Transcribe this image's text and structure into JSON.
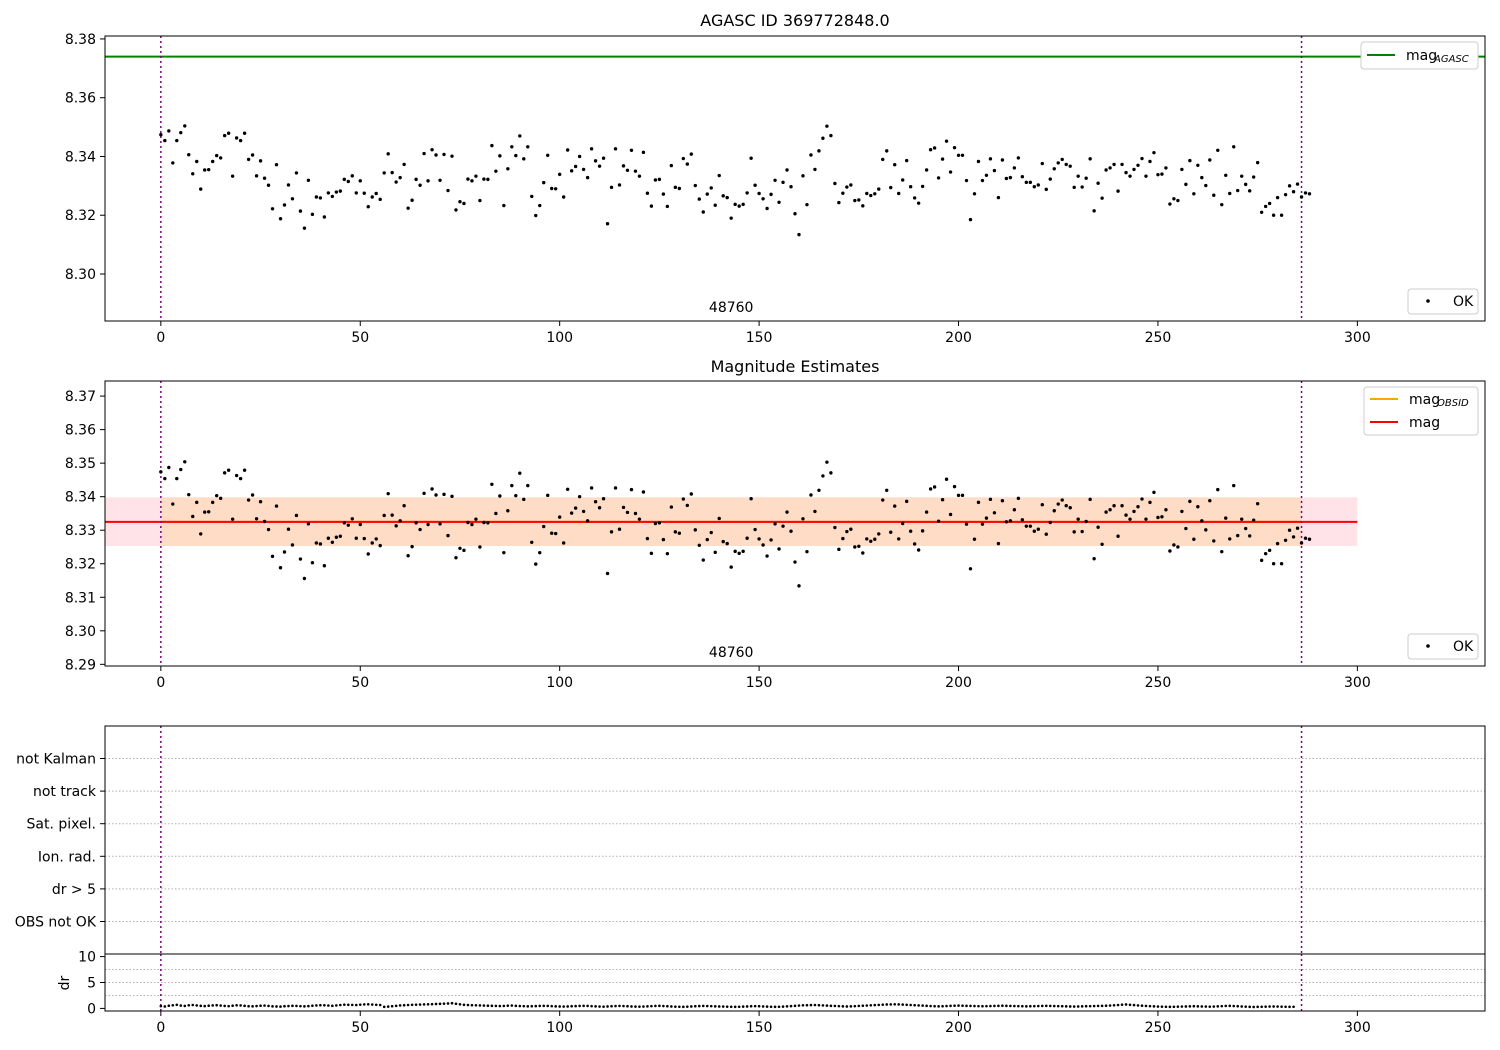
{
  "chart_data": [
    {
      "type": "scatter",
      "title": "AGASC ID 369772848.0",
      "xlim": [
        -14,
        332
      ],
      "ylim": [
        8.284,
        8.381
      ],
      "xticks": [
        0,
        50,
        100,
        150,
        200,
        250,
        300
      ],
      "yticks": [
        8.3,
        8.32,
        8.34,
        8.36,
        8.38
      ],
      "ytick_labels": [
        "8.30",
        "8.32",
        "8.34",
        "8.36",
        "8.38"
      ],
      "vlines": [
        0,
        286
      ],
      "hline": {
        "name": "mag_AGASC",
        "value": 8.374,
        "color": "#008000"
      },
      "obsid_label": {
        "text": "48760",
        "x": 143
      },
      "legends": [
        {
          "position": "top-right",
          "entries": [
            {
              "label": "mag",
              "sub": "AGASC",
              "kind": "line",
              "color": "#008000"
            }
          ]
        },
        {
          "position": "bottom-right",
          "entries": [
            {
              "label": "OK",
              "kind": "dot",
              "color": "#000000"
            }
          ]
        }
      ],
      "series": [
        {
          "name": "OK",
          "values": "shared:points"
        }
      ]
    },
    {
      "type": "scatter",
      "title": "Magnitude Estimates",
      "xlim": [
        -14,
        332
      ],
      "ylim": [
        8.2895,
        8.3745
      ],
      "xticks": [
        0,
        50,
        100,
        150,
        200,
        250,
        300
      ],
      "yticks": [
        8.29,
        8.3,
        8.31,
        8.32,
        8.33,
        8.34,
        8.35,
        8.36,
        8.37
      ],
      "ytick_labels": [
        "8.29",
        "8.30",
        "8.31",
        "8.32",
        "8.33",
        "8.34",
        "8.35",
        "8.36",
        "8.37"
      ],
      "vlines": [
        0,
        286
      ],
      "mag_line": {
        "value": 8.3325,
        "x": [
          -14,
          300
        ],
        "color": "#ff0000"
      },
      "mag_obsid_line": {
        "value": 8.3325,
        "x": [
          0,
          286
        ],
        "color": "#ffa500"
      },
      "band_outer": {
        "low": 8.3253,
        "high": 8.3398,
        "x": [
          -14,
          300
        ],
        "color": "#ffc0cb"
      },
      "band_inner": {
        "low": 8.3253,
        "high": 8.3398,
        "x": [
          0,
          286
        ],
        "color": "#ffdab9"
      },
      "obsid_label": {
        "text": "48760",
        "x": 143
      },
      "legends": [
        {
          "position": "top-right",
          "entries": [
            {
              "label": "mag",
              "sub": "OBSID",
              "kind": "line",
              "color": "#ffa500"
            },
            {
              "label": "mag",
              "sub": "",
              "kind": "line",
              "color": "#ff0000"
            }
          ]
        },
        {
          "position": "bottom-right",
          "entries": [
            {
              "label": "OK",
              "kind": "dot",
              "color": "#000000"
            }
          ]
        }
      ],
      "series": [
        {
          "name": "OK",
          "values": "shared:points"
        }
      ]
    },
    {
      "type": "scatter",
      "xlim": [
        -14,
        332
      ],
      "categories": [
        "OBS not OK",
        "dr > 5",
        "Ion. rad.",
        "Sat. pixel.",
        "not track",
        "not Kalman"
      ],
      "vlines": [
        0,
        286
      ]
    },
    {
      "type": "scatter",
      "ylabel": "dr",
      "xlim": [
        -14,
        332
      ],
      "ylim": [
        -0.5,
        10.5
      ],
      "yticks": [
        0,
        5,
        10
      ],
      "xticks": [
        0,
        50,
        100,
        150,
        200,
        250,
        300
      ],
      "vlines": [
        0,
        286
      ]
    }
  ],
  "mag_points": [
    8.3474,
    8.3454,
    8.3487,
    8.3378,
    8.3454,
    8.3481,
    8.3504,
    8.3406,
    8.3341,
    8.3383,
    8.3289,
    8.3354,
    8.3355,
    8.3383,
    8.3403,
    8.3395,
    8.3471,
    8.3479,
    8.3333,
    8.3463,
    8.3454,
    8.3479,
    8.339,
    8.3405,
    8.3334,
    8.3385,
    8.3326,
    8.3302,
    8.3222,
    8.3372,
    8.3188,
    8.3235,
    8.3303,
    8.3256,
    8.3344,
    8.3214,
    8.3156,
    8.3319,
    8.3203,
    8.3262,
    8.3259,
    8.3194,
    8.3276,
    8.3264,
    8.3279,
    8.3282,
    8.3322,
    8.3315,
    8.3334,
    8.3276,
    8.3317,
    8.3275,
    8.3229,
    8.3262,
    8.3274,
    8.3254,
    8.3344,
    8.3409,
    8.3345,
    8.3313,
    8.3328,
    8.3373,
    8.3224,
    8.3251,
    8.3322,
    8.3302,
    8.341,
    8.3317,
    8.3423,
    8.3405,
    8.3319,
    8.3407,
    8.3284,
    8.3401,
    8.3218,
    8.3246,
    8.324,
    8.3323,
    8.3317,
    8.3333,
    8.325,
    8.3323,
    8.3322,
    8.3437,
    8.335,
    8.3402,
    8.3233,
    8.3358,
    8.3433,
    8.3403,
    8.347,
    8.3392,
    8.3433,
    8.3264,
    8.3199,
    8.3233,
    8.3311,
    8.3404,
    8.3291,
    8.329,
    8.3339,
    8.3262,
    8.3422,
    8.3351,
    8.3366,
    8.34,
    8.3356,
    8.3328,
    8.3426,
    8.3385,
    8.3367,
    8.3394,
    8.3171,
    8.3295,
    8.3426,
    8.3303,
    8.3368,
    8.3353,
    8.3421,
    8.335,
    8.3333,
    8.3414,
    8.3275,
    8.3231,
    8.332,
    8.3322,
    8.3272,
    8.323,
    8.3369,
    8.3295,
    8.3291,
    8.3393,
    8.3374,
    8.3408,
    8.3301,
    8.3255,
    8.3211,
    8.3272,
    8.3293,
    8.3234,
    8.3335,
    8.3266,
    8.326,
    8.319,
    8.3237,
    8.3231,
    8.3237,
    8.3276,
    8.3394,
    8.3302,
    8.3274,
    8.3256,
    8.3223,
    8.3271,
    8.3319,
    8.3244,
    8.3312,
    8.3354,
    8.3297,
    8.3205,
    8.3134,
    8.3334,
    8.3236,
    8.3405,
    8.3356,
    8.3419,
    8.3462,
    8.3503,
    8.3471,
    8.3308,
    8.3243,
    8.3275,
    8.3296,
    8.3303,
    8.325,
    8.3252,
    8.3232,
    8.3274,
    8.3267,
    8.3273,
    8.3289,
    8.339,
    8.3419,
    8.3294,
    8.3372,
    8.3274,
    8.332,
    8.3386,
    8.3297,
    8.3259,
    8.3241,
    8.3298,
    8.3354,
    8.3423,
    8.3429,
    8.3327,
    8.3391,
    8.3452,
    8.3347,
    8.343,
    8.3404,
    8.3404,
    8.3318,
    8.3185,
    8.3273,
    8.3383,
    8.3318,
    8.3336,
    8.3392,
    8.3352,
    8.326,
    8.3388,
    8.3325,
    8.3328,
    8.3361,
    8.3395,
    8.3331,
    8.3312,
    8.3312,
    8.3297,
    8.3303,
    8.3376,
    8.3288,
    8.3323,
    8.3358,
    8.3378,
    8.339,
    8.3373,
    8.3367,
    8.3295,
    8.3333,
    8.3296,
    8.3326,
    8.3392,
    8.3215,
    8.3309,
    8.3258,
    8.3354,
    8.3361,
    8.3373,
    8.3282,
    8.3373,
    8.3345,
    8.3333,
    8.3356,
    8.337,
    8.3393,
    8.3333,
    8.3383,
    8.3413,
    8.3338,
    8.334,
    8.3361,
    8.3238,
    8.3256,
    8.325,
    8.3356,
    8.3305,
    8.3386,
    8.3273,
    8.337,
    8.3328,
    8.3301,
    8.3388,
    8.3268,
    8.3421,
    8.3236,
    8.3336,
    8.3274,
    8.3433,
    8.3284,
    8.3333,
    8.3305,
    8.3283,
    8.333,
    8.3379,
    8.321,
    8.323,
    8.324,
    8.32,
    8.326,
    8.32,
    8.327,
    8.33,
    8.328,
    8.3306,
    8.3262,
    8.3276,
    8.3273
  ],
  "dr_points": [
    0.45,
    0.38,
    0.52,
    0.61,
    0.7,
    0.55,
    0.48,
    0.6,
    0.66,
    0.58,
    0.5,
    0.45,
    0.52,
    0.58,
    0.62,
    0.55,
    0.48,
    0.44,
    0.52,
    0.6,
    0.58,
    0.5,
    0.42,
    0.4,
    0.46,
    0.52,
    0.55,
    0.48,
    0.4,
    0.38,
    0.35,
    0.42,
    0.46,
    0.5,
    0.48,
    0.44,
    0.4,
    0.45,
    0.52,
    0.58,
    0.62,
    0.6,
    0.55,
    0.5,
    0.58,
    0.66,
    0.72,
    0.7,
    0.68,
    0.66,
    0.72,
    0.78,
    0.8,
    0.75,
    0.7,
    0.66,
    0.3,
    0.35,
    0.42,
    0.5,
    0.58,
    0.62,
    0.66,
    0.7,
    0.72,
    0.75,
    0.78,
    0.8,
    0.82,
    0.86,
    0.88,
    0.92,
    0.95,
    1.0,
    0.9,
    0.8,
    0.7,
    0.66,
    0.62,
    0.6,
    0.58,
    0.55,
    0.52,
    0.5,
    0.48,
    0.46,
    0.48,
    0.52,
    0.55,
    0.5,
    0.46,
    0.44,
    0.4,
    0.42,
    0.45,
    0.48,
    0.5,
    0.48,
    0.44,
    0.4,
    0.38,
    0.36,
    0.38,
    0.42,
    0.45,
    0.48,
    0.5,
    0.48,
    0.44,
    0.4,
    0.36,
    0.34,
    0.38,
    0.42,
    0.46,
    0.48,
    0.46,
    0.42,
    0.38,
    0.35,
    0.34,
    0.36,
    0.4,
    0.44,
    0.48,
    0.5,
    0.46,
    0.42,
    0.38,
    0.34,
    0.32,
    0.3,
    0.34,
    0.38,
    0.42,
    0.45,
    0.48,
    0.46,
    0.44,
    0.4,
    0.38,
    0.36,
    0.34,
    0.32,
    0.3,
    0.32,
    0.35,
    0.38,
    0.42,
    0.44,
    0.42,
    0.38,
    0.35,
    0.32,
    0.3,
    0.32,
    0.35,
    0.4,
    0.45,
    0.5,
    0.55,
    0.6,
    0.62,
    0.64,
    0.66,
    0.62,
    0.58,
    0.54,
    0.5,
    0.48,
    0.44,
    0.4,
    0.38,
    0.4,
    0.44,
    0.48,
    0.52,
    0.56,
    0.6,
    0.64,
    0.68,
    0.72,
    0.76,
    0.78,
    0.8,
    0.78,
    0.74,
    0.7,
    0.66,
    0.62,
    0.58,
    0.54,
    0.5,
    0.46,
    0.42,
    0.4,
    0.42,
    0.46,
    0.5,
    0.52,
    0.54,
    0.52,
    0.5,
    0.48,
    0.46,
    0.44,
    0.42,
    0.44,
    0.46,
    0.48,
    0.5,
    0.52,
    0.5,
    0.48,
    0.46,
    0.44,
    0.42,
    0.4,
    0.42,
    0.44,
    0.46,
    0.48,
    0.5,
    0.48,
    0.46,
    0.44,
    0.42,
    0.4,
    0.38,
    0.36,
    0.38,
    0.4,
    0.42,
    0.44,
    0.46,
    0.48,
    0.5,
    0.52,
    0.56,
    0.6,
    0.66,
    0.72,
    0.76,
    0.7,
    0.64,
    0.58,
    0.52,
    0.48,
    0.44,
    0.4,
    0.36,
    0.34,
    0.32,
    0.3,
    0.32,
    0.34,
    0.36,
    0.38,
    0.4,
    0.42,
    0.4,
    0.38,
    0.36,
    0.34,
    0.36,
    0.4,
    0.44,
    0.48,
    0.5,
    0.46,
    0.42,
    0.38,
    0.34,
    0.3,
    0.28,
    0.3,
    0.32,
    0.34,
    0.36,
    0.38,
    0.36,
    0.34,
    0.32,
    0.3,
    0.32
  ]
}
